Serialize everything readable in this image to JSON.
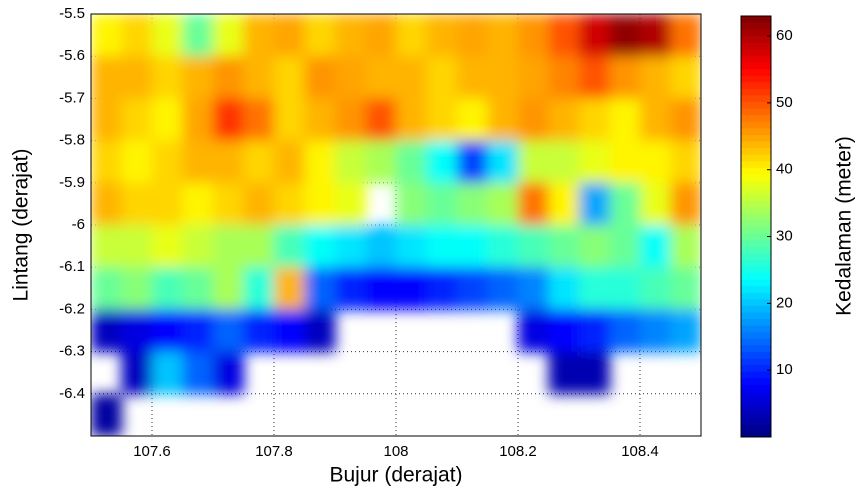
{
  "chart_data": {
    "type": "heatmap",
    "xlabel": "Bujur (derajat)",
    "ylabel": "Lintang (derajat)",
    "x": [
      107.525,
      107.575,
      107.625,
      107.675,
      107.725,
      107.775,
      107.825,
      107.875,
      107.925,
      107.975,
      108.025,
      108.075,
      108.125,
      108.175,
      108.225,
      108.275,
      108.325,
      108.375,
      108.425,
      108.475
    ],
    "y": [
      -5.55,
      -5.65,
      -5.75,
      -5.85,
      -5.95,
      -6.05,
      -6.15,
      -6.25,
      -6.35,
      -6.45
    ],
    "values": [
      [
        40,
        42,
        38,
        30,
        38,
        44,
        45,
        42,
        44,
        45,
        42,
        44,
        45,
        44,
        46,
        50,
        58,
        62,
        60,
        48
      ],
      [
        44,
        44,
        42,
        44,
        46,
        44,
        42,
        46,
        45,
        44,
        44,
        42,
        44,
        44,
        45,
        47,
        50,
        46,
        44,
        42
      ],
      [
        44,
        42,
        40,
        45,
        52,
        48,
        42,
        44,
        46,
        50,
        44,
        42,
        40,
        44,
        46,
        44,
        42,
        40,
        44,
        46
      ],
      [
        42,
        40,
        42,
        44,
        44,
        42,
        44,
        40,
        36,
        34,
        30,
        24,
        12,
        22,
        36,
        36,
        38,
        40,
        40,
        42
      ],
      [
        44,
        42,
        42,
        40,
        42,
        44,
        42,
        40,
        38,
        null,
        32,
        30,
        32,
        34,
        48,
        40,
        18,
        30,
        38,
        46
      ],
      [
        36,
        36,
        38,
        36,
        34,
        34,
        28,
        24,
        22,
        20,
        22,
        24,
        24,
        26,
        28,
        30,
        32,
        30,
        24,
        34
      ],
      [
        30,
        32,
        28,
        30,
        34,
        26,
        44,
        14,
        10,
        8,
        8,
        10,
        12,
        14,
        16,
        22,
        26,
        26,
        28,
        30
      ],
      [
        4,
        6,
        8,
        10,
        14,
        10,
        8,
        4,
        null,
        null,
        null,
        null,
        null,
        null,
        6,
        8,
        10,
        14,
        16,
        18
      ],
      [
        null,
        4,
        20,
        14,
        6,
        null,
        null,
        null,
        null,
        null,
        null,
        null,
        null,
        null,
        null,
        3,
        3,
        null,
        null,
        null
      ],
      [
        2,
        null,
        null,
        null,
        null,
        null,
        null,
        null,
        null,
        null,
        null,
        null,
        null,
        null,
        null,
        null,
        null,
        null,
        null,
        null
      ]
    ],
    "xlim": [
      107.5,
      108.5
    ],
    "ylim": [
      -6.5,
      -5.5
    ],
    "xticks": [
      107.6,
      107.8,
      108,
      108.2,
      108.4
    ],
    "yticks": [
      -5.5,
      -5.6,
      -5.7,
      -5.8,
      -5.9,
      -6,
      -6.1,
      -6.2,
      -6.3,
      -6.4
    ],
    "grid": true,
    "colormap": "jet",
    "colorbar": {
      "label": "Kedalaman (meter)",
      "clim": [
        0,
        63
      ],
      "ticks": [
        10,
        20,
        30,
        40,
        50,
        60
      ]
    }
  }
}
